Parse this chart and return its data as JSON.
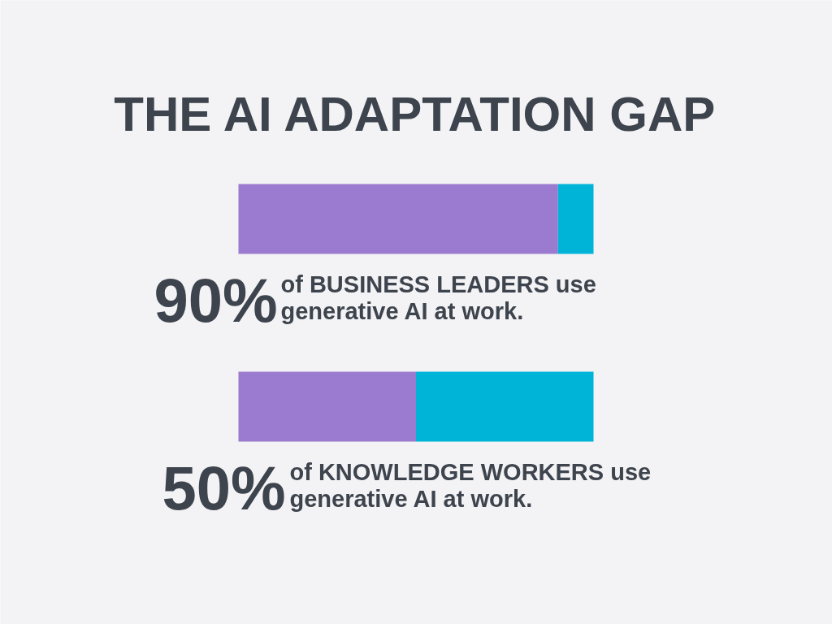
{
  "chart_data": {
    "type": "bar",
    "title": "THE AI ADAPTATION GAP",
    "orientation": "horizontal",
    "stacked": true,
    "categories": [
      "of BUSINESS LEADERS use\ngenerative AI at work.",
      "of KNOWLEDGE WORKERS use\ngenerative AI at work."
    ],
    "series": [
      {
        "color": "#9b7bd0",
        "values": [
          90,
          50
        ],
        "value_labels": [
          "90%",
          "50%"
        ]
      },
      {
        "color": "#00b4d8",
        "values": [
          10,
          50
        ]
      }
    ],
    "xlim": [
      0,
      100
    ],
    "tick_labels": false,
    "grid": false
  }
}
